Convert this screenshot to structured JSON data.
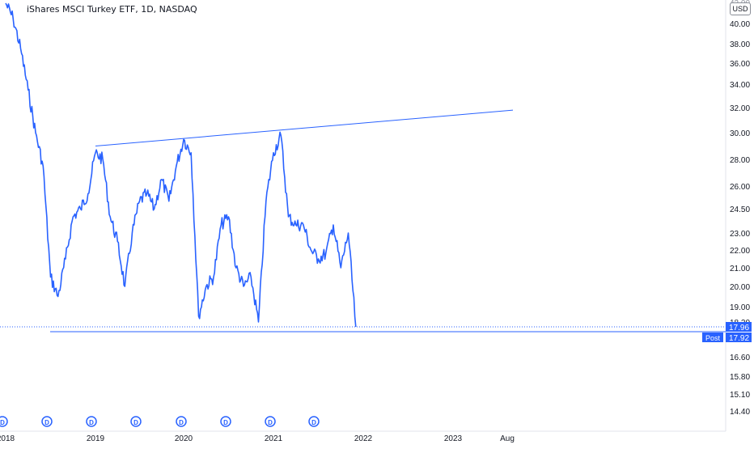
{
  "header": {
    "title": "iShares MSCI Turkey ETF, 1D, NASDAQ",
    "currency_button": "USD"
  },
  "colors": {
    "price_line": "#2962ff",
    "trend_line": "#2962ff",
    "axis_text": "#131722",
    "grid": "#f0f3fa",
    "label_bg": "#2962ff"
  },
  "price_axis": {
    "ticks": [
      "40.00",
      "38.00",
      "36.00",
      "34.00",
      "32.00",
      "30.00",
      "28.00",
      "26.00",
      "24.50",
      "23.00",
      "22.00",
      "21.00",
      "20.00",
      "19.00",
      "18.20",
      "16.60",
      "15.80",
      "15.10",
      "14.40"
    ],
    "top_partial": "42.00"
  },
  "time_axis": {
    "ticks": [
      "2018",
      "2019",
      "2020",
      "2021",
      "2022",
      "2023",
      "Aug"
    ]
  },
  "labels": {
    "last_price": "17.96",
    "post_price": "17.92",
    "post_tag": "Post"
  },
  "dividend_markers": {
    "label": "D",
    "count": 8
  },
  "chart_data": {
    "type": "line",
    "title": "iShares MSCI Turkey ETF, 1D, NASDAQ",
    "series": [
      {
        "name": "",
        "x": [
          "2018-01",
          "2018-02",
          "2018-03",
          "2018-04",
          "2018-05",
          "2018-06",
          "2018-07",
          "2018-08",
          "2018-09",
          "2018-10",
          "2018-11",
          "2018-12",
          "2019-01",
          "2019-02",
          "2019-03",
          "2019-04",
          "2019-05",
          "2019-06",
          "2019-07",
          "2019-08",
          "2019-09",
          "2019-10",
          "2019-11",
          "2019-12",
          "2020-01",
          "2020-02",
          "2020-03",
          "2020-04",
          "2020-05",
          "2020-06",
          "2020-07",
          "2020-08",
          "2020-09",
          "2020-10",
          "2020-11",
          "2020-12",
          "2021-01",
          "2021-02",
          "2021-03",
          "2021-04",
          "2021-05",
          "2021-06",
          "2021-07",
          "2021-08",
          "2021-09",
          "2021-10",
          "2021-11",
          "2021-12"
        ],
        "values": [
          42.0,
          40.5,
          37.5,
          33.5,
          30.0,
          27.5,
          20.5,
          19.5,
          21.5,
          24.0,
          24.5,
          25.5,
          28.5,
          28.0,
          24.0,
          22.5,
          20.0,
          23.0,
          25.0,
          25.5,
          24.5,
          26.5,
          25.0,
          27.5,
          29.5,
          28.5,
          18.5,
          20.0,
          20.5,
          23.5,
          24.0,
          21.0,
          20.0,
          20.5,
          18.2,
          25.0,
          28.5,
          29.8,
          24.0,
          23.5,
          23.5,
          22.0,
          21.5,
          21.8,
          23.5,
          21.0,
          23.0,
          17.96
        ]
      }
    ],
    "annotations": [
      {
        "type": "trend_line",
        "from": [
          "2019-01",
          29.0
        ],
        "to": [
          "2023-09",
          31.8
        ]
      },
      {
        "type": "horizontal_line",
        "value": 17.92
      }
    ],
    "ylabel": "",
    "xlabel": "",
    "y_scale": "log",
    "grid": false
  }
}
